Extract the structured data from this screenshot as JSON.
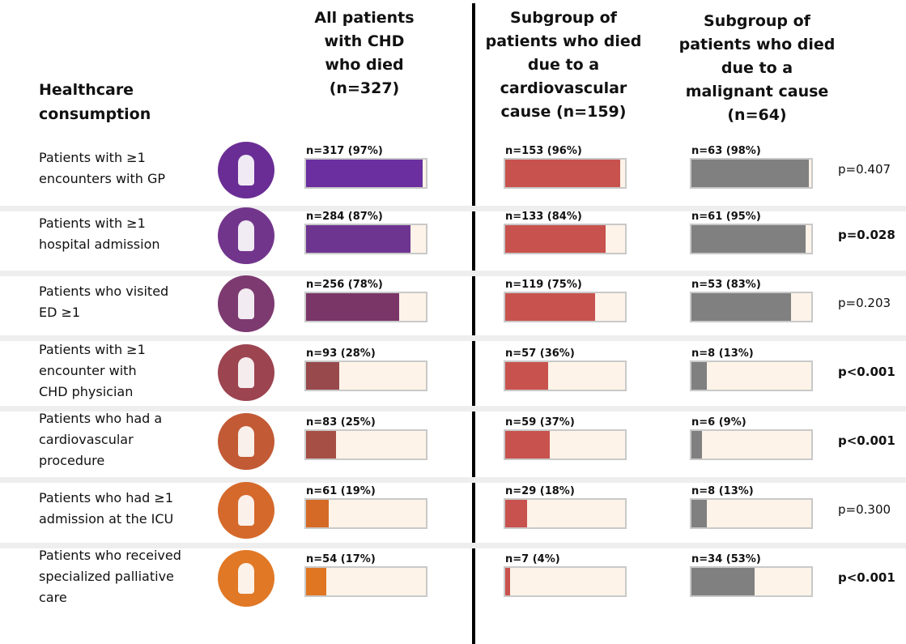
{
  "header": {
    "title": [
      "Healthcare",
      "consumption"
    ],
    "columns": [
      {
        "lines": [
          "All patients",
          "with CHD",
          "who died",
          "(n=327)"
        ],
        "color": "#6b2fa0"
      },
      {
        "lines": [
          "Subgroup of",
          "patients who died",
          "due to a",
          "cardiovascular",
          "cause (n=159)"
        ],
        "color": "#c8524e"
      },
      {
        "lines": [
          "Subgroup of",
          "patients who died",
          "due to a",
          "malignant cause",
          "(n=64)"
        ],
        "color": "#808080"
      }
    ]
  },
  "xlim": [
    0,
    100
  ],
  "rows": [
    {
      "label": [
        "Patients with ≥1",
        "encounters with GP"
      ],
      "icon_color": "#6a2d95",
      "bar_color": "#6b2fa0",
      "cells": [
        {
          "label": "n=317 (97%)",
          "value": 97
        },
        {
          "label": "n=153 (96%)",
          "value": 96
        },
        {
          "label": "n=63 (98%)",
          "value": 98
        }
      ],
      "p": "p=0.407",
      "bold": false
    },
    {
      "label": [
        "Patients with ≥1",
        "hospital admission"
      ],
      "icon_color": "#72358c",
      "bar_color": "#6e3590",
      "cells": [
        {
          "label": "n=284 (87%)",
          "value": 87
        },
        {
          "label": "n=133 (84%)",
          "value": 84
        },
        {
          "label": "n=61 (95%)",
          "value": 95
        }
      ],
      "p": "p=0.028",
      "bold": true
    },
    {
      "label": [
        "Patients who visited",
        "ED ≥1"
      ],
      "icon_color": "#7d3a70",
      "bar_color": "#7b3668",
      "cells": [
        {
          "label": "n=256 (78%)",
          "value": 78
        },
        {
          "label": "n=119 (75%)",
          "value": 75
        },
        {
          "label": "n=53 (83%)",
          "value": 83
        }
      ],
      "p": "p=0.203",
      "bold": false
    },
    {
      "label": [
        "Patients with ≥1",
        "encounter with",
        "CHD physician"
      ],
      "icon_color": "#9c4450",
      "bar_color": "#97494c",
      "cells": [
        {
          "label": "n=93 (28%)",
          "value": 28
        },
        {
          "label": "n=57 (36%)",
          "value": 36
        },
        {
          "label": "n=8 (13%)",
          "value": 13
        }
      ],
      "p": "p<0.001",
      "bold": true
    },
    {
      "label": [
        "Patients who had a",
        "cardiovascular",
        "procedure"
      ],
      "icon_color": "#c25a35",
      "bar_color": "#a64f45",
      "cells": [
        {
          "label": "n=83 (25%)",
          "value": 25
        },
        {
          "label": "n=59 (37%)",
          "value": 37
        },
        {
          "label": "n=6 (9%)",
          "value": 9
        }
      ],
      "p": "p<0.001",
      "bold": true
    },
    {
      "label": [
        "Patients who had ≥1",
        "admission at the ICU"
      ],
      "icon_color": "#d5692b",
      "bar_color": "#d56a26",
      "cells": [
        {
          "label": "n=61 (19%)",
          "value": 19
        },
        {
          "label": "n=29 (18%)",
          "value": 18
        },
        {
          "label": "n=8 (13%)",
          "value": 13
        }
      ],
      "p": "p=0.300",
      "bold": false
    },
    {
      "label": [
        "Patients who received",
        "specialized palliative",
        "care"
      ],
      "icon_color": "#e07826",
      "bar_color": "#e07622",
      "cells": [
        {
          "label": "n=54 (17%)",
          "value": 17
        },
        {
          "label": "n=7 (4%)",
          "value": 4
        },
        {
          "label": "n=34 (53%)",
          "value": 53
        }
      ],
      "p": "p<0.001",
      "bold": true
    }
  ]
}
